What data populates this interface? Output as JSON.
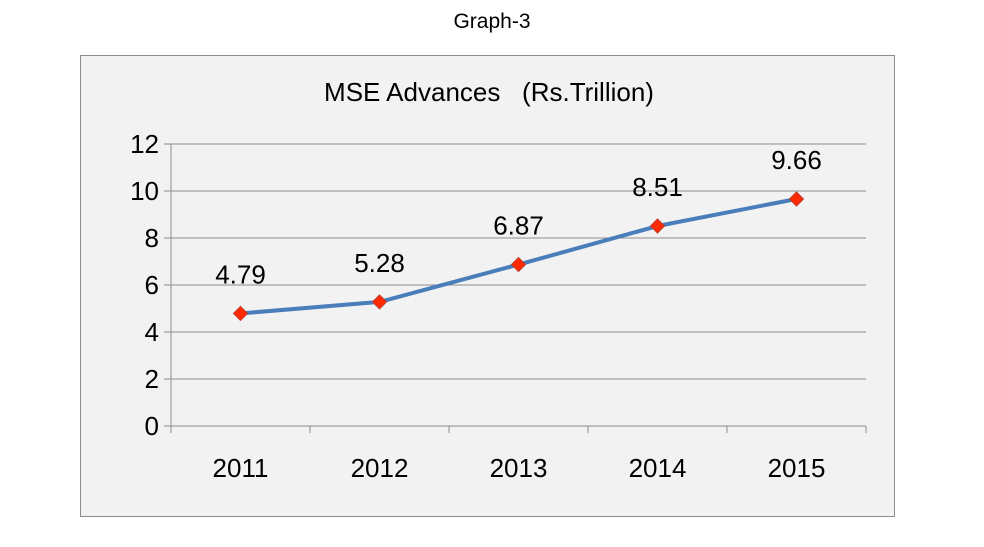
{
  "caption": "Graph-3",
  "chart_data": {
    "type": "line",
    "title": "MSE Advances   (Rs.Trillion)",
    "categories": [
      "2011",
      "2012",
      "2013",
      "2014",
      "2015"
    ],
    "values": [
      4.79,
      5.28,
      6.87,
      8.51,
      9.66
    ],
    "data_labels": [
      "4.79",
      "5.28",
      "6.87",
      "8.51",
      "9.66"
    ],
    "y_ticks": [
      "0",
      "2",
      "4",
      "6",
      "8",
      "10",
      "12"
    ],
    "ylim": [
      0,
      12
    ],
    "y_step": 2,
    "grid": true,
    "legend": "none",
    "colors": {
      "line": "#4a7ebb",
      "marker": "#ff2a00",
      "marker_stroke": "#c0392b",
      "grid": "#8c8c8c",
      "axis": "#8c8c8c",
      "background": "#f2f2f2"
    }
  }
}
